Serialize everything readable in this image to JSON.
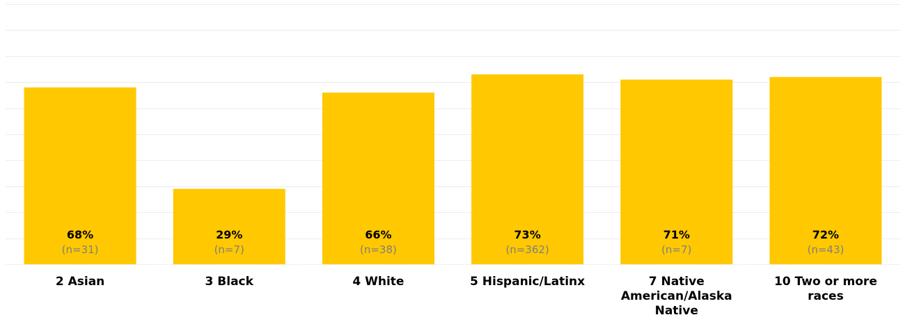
{
  "chart_data": {
    "type": "bar",
    "categories": [
      [
        "2 Asian"
      ],
      [
        "3 Black"
      ],
      [
        "4 White"
      ],
      [
        "5 Hispanic/Latinx"
      ],
      [
        "7 Native",
        "American/Alaska",
        "Native"
      ],
      [
        "10 Two or more",
        "races"
      ]
    ],
    "values": [
      68,
      29,
      66,
      73,
      71,
      72
    ],
    "value_labels": [
      "68%",
      "29%",
      "66%",
      "73%",
      "71%",
      "72%"
    ],
    "n_labels": [
      "(n=31)",
      "(n=7)",
      "(n=38)",
      "(n=362)",
      "(n=7)",
      "(n=43)"
    ],
    "ylim": [
      0,
      100
    ],
    "grid": true,
    "bar_color": "#FFC800",
    "title": "",
    "xlabel": "",
    "ylabel": ""
  }
}
